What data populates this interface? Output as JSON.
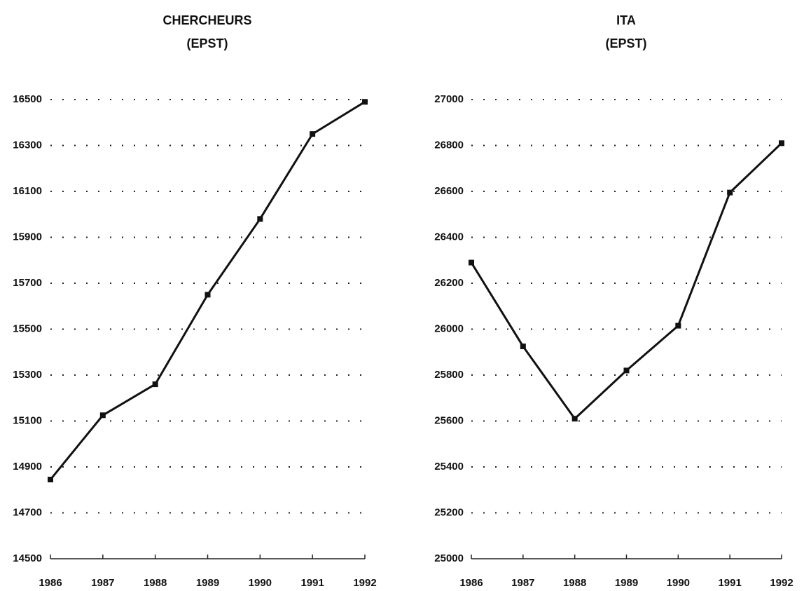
{
  "chart_data": [
    {
      "type": "line",
      "title": "CHERCHEURS",
      "subtitle": "(EPST)",
      "x": [
        1986,
        1987,
        1988,
        1989,
        1990,
        1991,
        1992
      ],
      "values": [
        14845,
        15125,
        15260,
        15650,
        15980,
        16350,
        16490
      ],
      "color": "#111111",
      "ylim": [
        14500,
        16500
      ],
      "yticks": [
        14500,
        14700,
        14900,
        15100,
        15300,
        15500,
        15700,
        15900,
        16100,
        16300,
        16500
      ],
      "xlim": [
        1986,
        1992
      ],
      "xticks": [
        1986,
        1987,
        1988,
        1989,
        1990,
        1991,
        1992
      ],
      "grid": true
    },
    {
      "type": "line",
      "title": "ITA",
      "subtitle": "(EPST)",
      "x": [
        1986,
        1987,
        1988,
        1989,
        1990,
        1991,
        1992
      ],
      "values": [
        26290,
        25925,
        25610,
        25820,
        26015,
        26595,
        26810
      ],
      "color": "#111111",
      "ylim": [
        25000,
        27000
      ],
      "yticks": [
        25000,
        25200,
        25400,
        25600,
        25800,
        26000,
        26200,
        26400,
        26600,
        26800,
        27000
      ],
      "xlim": [
        1986,
        1992
      ],
      "xticks": [
        1986,
        1987,
        1988,
        1989,
        1990,
        1991,
        1992
      ],
      "grid": true
    }
  ]
}
